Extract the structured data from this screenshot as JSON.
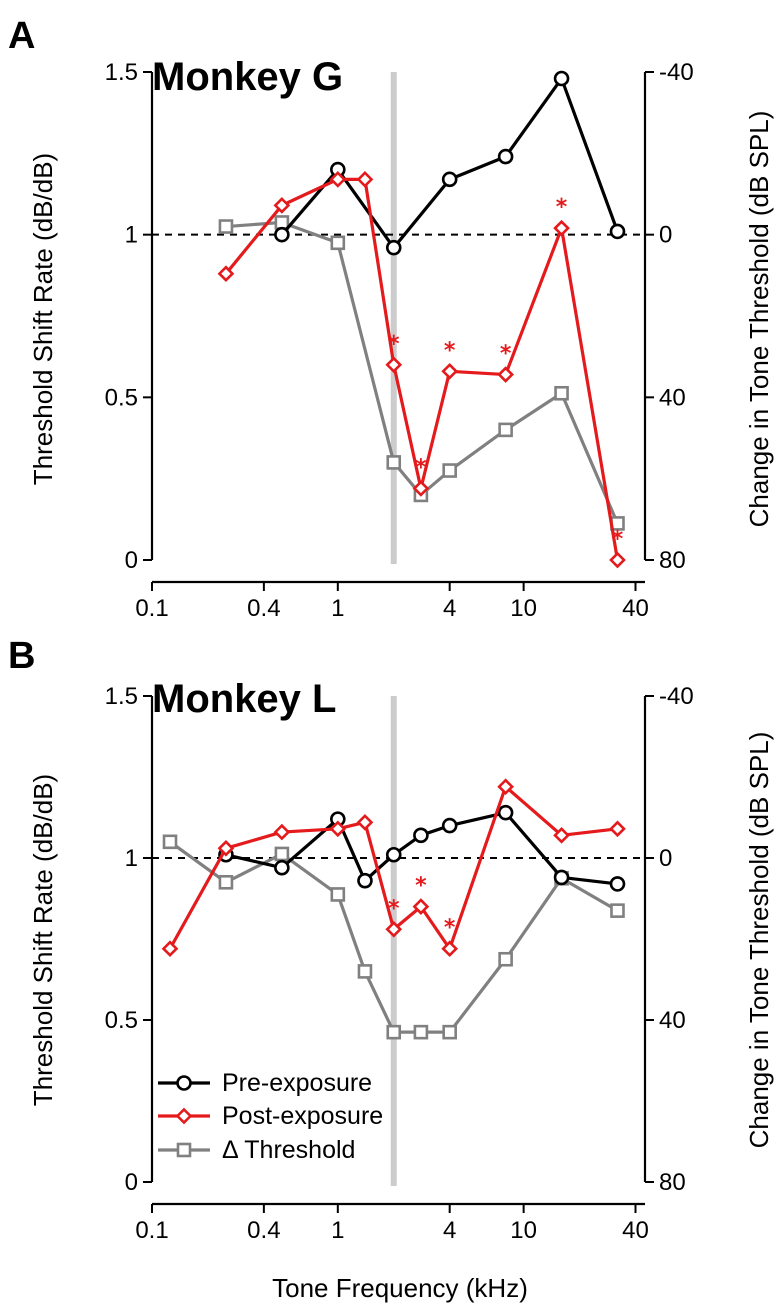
{
  "colors": {
    "pre": "#000000",
    "post": "#e41a1c",
    "delta": "#808080",
    "marker_line": "#cccccc",
    "reference": "#000000"
  },
  "legend": {
    "pre": "Pre-exposure",
    "post": "Post-exposure",
    "delta": "Δ Threshold"
  },
  "chart_data": [
    {
      "type": "line",
      "panel_label": "A",
      "title": "Monkey G",
      "xlabel": "",
      "ylabel": "Threshold Shift Rate (dB/dB)",
      "y2label": "Change in Tone Threshold (dB SPL)",
      "xscale": "log",
      "xlim": [
        0.1,
        45
      ],
      "ylim": [
        0,
        1.5
      ],
      "y2lim": [
        80,
        -40
      ],
      "xticks": [
        0.1,
        0.4,
        1,
        4,
        10,
        40
      ],
      "xticklabels": [
        "0.1",
        "0.4",
        "1",
        "4",
        "10",
        "40"
      ],
      "yticks": [
        0,
        0.5,
        1,
        1.5
      ],
      "yticklabels": [
        "0",
        "0.5",
        "1",
        "1.5"
      ],
      "y2ticks": [
        80,
        40,
        0,
        -40
      ],
      "y2ticklabels": [
        "80",
        "40",
        "0",
        "-40"
      ],
      "reference_line": 1,
      "vertical_marker": 2,
      "series": [
        {
          "name": "Pre-exposure",
          "key": "pre",
          "marker": "circle",
          "axis": "left",
          "x": [
            0.5,
            1,
            2,
            4,
            8,
            16,
            32
          ],
          "y": [
            1.0,
            1.2,
            0.96,
            1.17,
            1.24,
            1.48,
            1.01
          ]
        },
        {
          "name": "Post-exposure",
          "key": "post",
          "marker": "diamond",
          "axis": "left",
          "x": [
            0.25,
            0.5,
            1,
            1.4,
            2,
            2.8,
            4,
            8,
            16,
            32
          ],
          "y": [
            0.88,
            1.09,
            1.17,
            1.17,
            0.6,
            0.22,
            0.58,
            0.57,
            1.02,
            0.0
          ]
        },
        {
          "name": "Δ Threshold",
          "key": "delta",
          "marker": "square",
          "axis": "right",
          "x": [
            0.25,
            0.5,
            1,
            2,
            2.8,
            4,
            8,
            16,
            32
          ],
          "y": [
            -2,
            -3,
            2,
            56,
            64,
            58,
            48,
            39,
            71
          ]
        }
      ],
      "significance_x": [
        2,
        2.8,
        4,
        8,
        16,
        32
      ],
      "significance_mark": "*"
    },
    {
      "type": "line",
      "panel_label": "B",
      "title": "Monkey L",
      "xlabel": "Tone Frequency (kHz)",
      "ylabel": "Threshold Shift Rate (dB/dB)",
      "y2label": "Change in Tone Threshold (dB SPL)",
      "xscale": "log",
      "xlim": [
        0.1,
        45
      ],
      "ylim": [
        0,
        1.5
      ],
      "y2lim": [
        80,
        -40
      ],
      "xticks": [
        0.1,
        0.4,
        1,
        4,
        10,
        40
      ],
      "xticklabels": [
        "0.1",
        "0.4",
        "1",
        "4",
        "10",
        "40"
      ],
      "yticks": [
        0,
        0.5,
        1,
        1.5
      ],
      "yticklabels": [
        "0",
        "0.5",
        "1",
        "1.5"
      ],
      "y2ticks": [
        80,
        40,
        0,
        -40
      ],
      "y2ticklabels": [
        "80",
        "40",
        "0",
        "-40"
      ],
      "reference_line": 1,
      "vertical_marker": 2,
      "series": [
        {
          "name": "Pre-exposure",
          "key": "pre",
          "marker": "circle",
          "axis": "left",
          "x": [
            0.25,
            0.5,
            1,
            1.4,
            2,
            2.8,
            4,
            8,
            16,
            32
          ],
          "y": [
            1.01,
            0.97,
            1.12,
            0.93,
            1.01,
            1.07,
            1.1,
            1.14,
            0.94,
            0.92
          ]
        },
        {
          "name": "Post-exposure",
          "key": "post",
          "marker": "diamond",
          "axis": "left",
          "x": [
            0.125,
            0.25,
            0.5,
            1,
            1.4,
            2,
            2.8,
            4,
            8,
            16,
            32
          ],
          "y": [
            0.72,
            1.03,
            1.08,
            1.09,
            1.11,
            0.78,
            0.85,
            0.72,
            1.22,
            1.07,
            1.09
          ]
        },
        {
          "name": "Δ Threshold",
          "key": "delta",
          "marker": "square",
          "axis": "right",
          "x": [
            0.125,
            0.25,
            0.5,
            1,
            1.4,
            2,
            2.8,
            4,
            8,
            16,
            32
          ],
          "y": [
            -4,
            6,
            -1,
            9,
            28,
            43,
            43,
            43,
            25,
            5,
            13
          ]
        }
      ],
      "significance_x": [
        2,
        2.8,
        4
      ],
      "significance_mark": "*"
    }
  ]
}
